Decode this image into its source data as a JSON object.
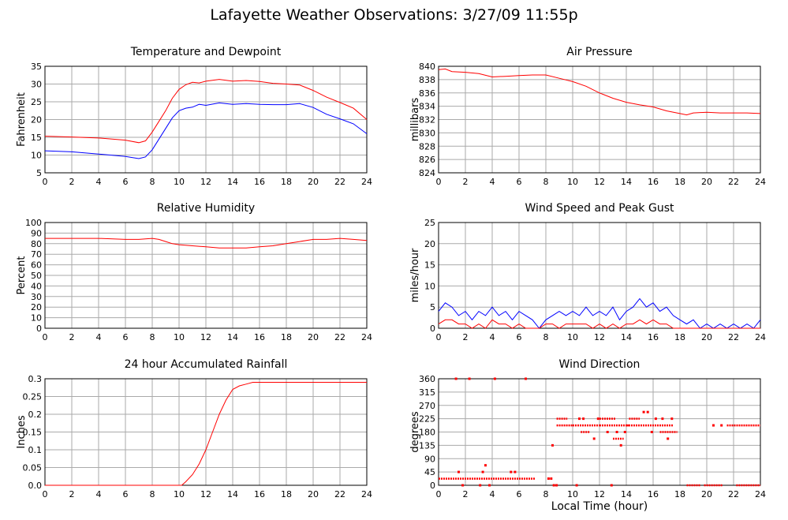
{
  "page": {
    "title": "Lafayette Weather Observations: 3/27/09 11:55p"
  },
  "common_xlabel": "Local Time (hour)",
  "chart_data": [
    {
      "id": "temp",
      "type": "line",
      "title": "Temperature and Dewpoint",
      "xlabel": "",
      "ylabel": "Fahrenheit",
      "xlim": [
        0,
        24
      ],
      "ylim": [
        5,
        35
      ],
      "grid": true,
      "x_ticks": [
        0,
        2,
        4,
        6,
        8,
        10,
        12,
        14,
        16,
        18,
        20,
        22,
        24
      ],
      "y_ticks": [
        5,
        10,
        15,
        20,
        25,
        30,
        35
      ],
      "series": [
        {
          "color": "#ff0000",
          "x": [
            0,
            2,
            4,
            6,
            7,
            7.5,
            8,
            8.5,
            9,
            9.5,
            10,
            10.5,
            11,
            11.5,
            12,
            13,
            14,
            15,
            16,
            17,
            18,
            19,
            20,
            21,
            22,
            23,
            24
          ],
          "y": [
            15.3,
            15.1,
            14.8,
            14.2,
            13.5,
            14,
            16.5,
            19.5,
            22.5,
            26,
            28.5,
            29.8,
            30.5,
            30.3,
            30.8,
            31.3,
            30.8,
            31,
            30.7,
            30.2,
            30,
            29.7,
            28.2,
            26.3,
            24.8,
            23.2,
            20
          ]
        },
        {
          "color": "#0000ff",
          "x": [
            0,
            2,
            4,
            6,
            7,
            7.5,
            8,
            8.5,
            9,
            9.5,
            10,
            10.5,
            11,
            11.5,
            12,
            13,
            14,
            15,
            16,
            17,
            18,
            19,
            20,
            21,
            22,
            23,
            24
          ],
          "y": [
            11.2,
            10.9,
            10.3,
            9.6,
            9,
            9.5,
            11.5,
            14.5,
            17.5,
            20.5,
            22.5,
            23.2,
            23.5,
            24.3,
            24,
            24.7,
            24.3,
            24.5,
            24.3,
            24.2,
            24.2,
            24.5,
            23.4,
            21.5,
            20.2,
            18.8,
            16
          ]
        }
      ]
    },
    {
      "id": "pressure",
      "type": "line",
      "title": "Air Pressure",
      "xlabel": "",
      "ylabel": "millibars",
      "xlim": [
        0,
        24
      ],
      "ylim": [
        824,
        840
      ],
      "grid": true,
      "x_ticks": [
        0,
        2,
        4,
        6,
        8,
        10,
        12,
        14,
        16,
        18,
        20,
        22,
        24
      ],
      "y_ticks": [
        824,
        826,
        828,
        830,
        832,
        834,
        836,
        838,
        840
      ],
      "series": [
        {
          "color": "#ff0000",
          "x": [
            0,
            0.5,
            1,
            2,
            3,
            4,
            5,
            6,
            7,
            8,
            9,
            10,
            11,
            12,
            13,
            14,
            15,
            16,
            17,
            18,
            18.5,
            19,
            20,
            21,
            22,
            23,
            24
          ],
          "y": [
            839.5,
            839.6,
            839.2,
            839.1,
            838.9,
            838.4,
            838.5,
            838.6,
            838.7,
            838.7,
            838.2,
            837.7,
            837,
            836,
            835.2,
            834.6,
            834.2,
            833.9,
            833.3,
            832.9,
            832.7,
            833,
            833.1,
            833,
            833,
            833,
            832.9
          ]
        }
      ]
    },
    {
      "id": "humidity",
      "type": "line",
      "title": "Relative Humidity",
      "xlabel": "",
      "ylabel": "Percent",
      "xlim": [
        0,
        24
      ],
      "ylim": [
        0,
        100
      ],
      "grid": true,
      "x_ticks": [
        0,
        2,
        4,
        6,
        8,
        10,
        12,
        14,
        16,
        18,
        20,
        22,
        24
      ],
      "y_ticks": [
        0,
        10,
        20,
        30,
        40,
        50,
        60,
        70,
        80,
        90,
        100
      ],
      "series": [
        {
          "color": "#ff0000",
          "x": [
            0,
            2,
            4,
            6,
            7,
            8,
            8.5,
            9,
            9.5,
            10,
            11,
            12,
            13,
            14,
            15,
            16,
            17,
            18,
            19,
            20,
            21,
            22,
            23,
            24
          ],
          "y": [
            85,
            85,
            85,
            84,
            84,
            85,
            84,
            82,
            80,
            79,
            78,
            77,
            76,
            76,
            76,
            77,
            78,
            80,
            82,
            84,
            84,
            85,
            84,
            83
          ]
        }
      ]
    },
    {
      "id": "wind",
      "type": "line",
      "title": "Wind Speed and Peak Gust",
      "xlabel": "",
      "ylabel": "miles/hour",
      "xlim": [
        0,
        24
      ],
      "ylim": [
        0,
        25
      ],
      "grid": true,
      "x_ticks": [
        0,
        2,
        4,
        6,
        8,
        10,
        12,
        14,
        16,
        18,
        20,
        22,
        24
      ],
      "y_ticks": [
        0,
        5,
        10,
        15,
        20,
        25
      ],
      "series": [
        {
          "color": "#0000ff",
          "x": [
            0,
            0.5,
            1,
            1.5,
            2,
            2.5,
            3,
            3.5,
            4,
            4.5,
            5,
            5.5,
            6,
            6.5,
            7,
            7.5,
            8,
            8.5,
            9,
            9.5,
            10,
            10.5,
            11,
            11.5,
            12,
            12.5,
            13,
            13.5,
            14,
            14.5,
            15,
            15.5,
            16,
            16.5,
            17,
            17.5,
            18,
            18.5,
            19,
            19.5,
            20,
            20.5,
            21,
            21.5,
            22,
            22.5,
            23,
            23.5,
            24
          ],
          "y": [
            4,
            6,
            5,
            3,
            4,
            2,
            4,
            3,
            5,
            3,
            4,
            2,
            4,
            3,
            2,
            0,
            2,
            3,
            4,
            3,
            4,
            3,
            5,
            3,
            4,
            3,
            5,
            2,
            4,
            5,
            7,
            5,
            6,
            4,
            5,
            3,
            2,
            1,
            2,
            0,
            1,
            0,
            1,
            0,
            1,
            0,
            1,
            0,
            2
          ]
        },
        {
          "color": "#ff0000",
          "x": [
            0,
            0.5,
            1,
            1.5,
            2,
            2.5,
            3,
            3.5,
            4,
            4.5,
            5,
            5.5,
            6,
            6.5,
            7,
            7.5,
            8,
            8.5,
            9,
            9.5,
            10,
            10.5,
            11,
            11.5,
            12,
            12.5,
            13,
            13.5,
            14,
            14.5,
            15,
            15.5,
            16,
            16.5,
            17,
            17.5,
            18,
            19,
            20,
            21,
            22,
            23,
            24
          ],
          "y": [
            1,
            2,
            2,
            1,
            1,
            0,
            1,
            0,
            2,
            1,
            1,
            0,
            1,
            0,
            0,
            0,
            1,
            1,
            0,
            1,
            1,
            1,
            1,
            0,
            1,
            0,
            1,
            0,
            1,
            1,
            2,
            1,
            2,
            1,
            1,
            0,
            0,
            0,
            0,
            0,
            0,
            0,
            0
          ]
        }
      ]
    },
    {
      "id": "rain",
      "type": "line",
      "title": "24 hour Accumulated Rainfall",
      "xlabel": "",
      "ylabel": "Inches",
      "xlim": [
        0,
        24
      ],
      "ylim": [
        0,
        0.3
      ],
      "grid": true,
      "x_ticks": [
        0,
        2,
        4,
        6,
        8,
        10,
        12,
        14,
        16,
        18,
        20,
        22,
        24
      ],
      "y_ticks": [
        0,
        0.05,
        0.1,
        0.15,
        0.2,
        0.25,
        0.3
      ],
      "y_tick_labels": [
        "0.0",
        "0.05",
        "0.1",
        "0.15",
        "0.2",
        "0.25",
        "0.3"
      ],
      "series": [
        {
          "color": "#ff0000",
          "x": [
            0,
            10.2,
            10.5,
            11,
            11.5,
            12,
            12.5,
            13,
            13.5,
            14,
            14.5,
            15,
            15.5,
            16,
            24
          ],
          "y": [
            0,
            0,
            0.01,
            0.03,
            0.06,
            0.1,
            0.15,
            0.2,
            0.24,
            0.27,
            0.28,
            0.285,
            0.29,
            0.29,
            0.29
          ]
        }
      ]
    },
    {
      "id": "direction",
      "type": "scatter",
      "title": "Wind Direction",
      "xlabel": "Local Time (hour)",
      "ylabel": "degrees",
      "xlim": [
        0,
        24
      ],
      "ylim": [
        0,
        360
      ],
      "grid": true,
      "x_ticks": [
        0,
        2,
        4,
        6,
        8,
        10,
        12,
        14,
        16,
        18,
        20,
        22,
        24
      ],
      "y_ticks": [
        0,
        45,
        90,
        135,
        180,
        225,
        270,
        315,
        360
      ],
      "point_color": "#ff0000",
      "segments": [
        {
          "x0": 0,
          "x1": 7.2,
          "y": 22.5
        },
        {
          "x0": 8.8,
          "x1": 9.6,
          "y": 225
        },
        {
          "x0": 8.8,
          "x1": 10,
          "y": 202.5
        },
        {
          "x0": 10,
          "x1": 12,
          "y": 202.5
        },
        {
          "x0": 10.6,
          "x1": 11.3,
          "y": 180
        },
        {
          "x0": 12,
          "x1": 13.2,
          "y": 225
        },
        {
          "x0": 12,
          "x1": 14.2,
          "y": 202.5
        },
        {
          "x0": 13,
          "x1": 13.8,
          "y": 157.5
        },
        {
          "x0": 14,
          "x1": 17.5,
          "y": 202.5
        },
        {
          "x0": 14.2,
          "x1": 15,
          "y": 225
        },
        {
          "x0": 16.5,
          "x1": 17.8,
          "y": 180
        },
        {
          "x0": 18.5,
          "x1": 19.5,
          "y": 0
        },
        {
          "x0": 19.8,
          "x1": 21.2,
          "y": 0
        },
        {
          "x0": 21.5,
          "x1": 24,
          "y": 202.5
        },
        {
          "x0": 22.2,
          "x1": 24,
          "y": 0
        }
      ],
      "points": [
        {
          "x": 1.3,
          "y": 360
        },
        {
          "x": 2.3,
          "y": 360
        },
        {
          "x": 4.2,
          "y": 360
        },
        {
          "x": 6.5,
          "y": 360
        },
        {
          "x": 1.5,
          "y": 45
        },
        {
          "x": 3.5,
          "y": 67.5
        },
        {
          "x": 3.3,
          "y": 45
        },
        {
          "x": 5.4,
          "y": 45
        },
        {
          "x": 5.7,
          "y": 45
        },
        {
          "x": 1.8,
          "y": 0
        },
        {
          "x": 3.1,
          "y": 0
        },
        {
          "x": 3.8,
          "y": 0
        },
        {
          "x": 8.2,
          "y": 22.5
        },
        {
          "x": 8.4,
          "y": 22.5
        },
        {
          "x": 8.6,
          "y": 0
        },
        {
          "x": 8.8,
          "y": 0
        },
        {
          "x": 10.3,
          "y": 0
        },
        {
          "x": 12.9,
          "y": 0
        },
        {
          "x": 8.5,
          "y": 135
        },
        {
          "x": 10.5,
          "y": 225
        },
        {
          "x": 10.8,
          "y": 225
        },
        {
          "x": 11.6,
          "y": 157.5
        },
        {
          "x": 11.9,
          "y": 225
        },
        {
          "x": 12.6,
          "y": 180
        },
        {
          "x": 13.3,
          "y": 180
        },
        {
          "x": 13.6,
          "y": 135
        },
        {
          "x": 13.9,
          "y": 180
        },
        {
          "x": 15.3,
          "y": 247.5
        },
        {
          "x": 15.6,
          "y": 247.5
        },
        {
          "x": 15.9,
          "y": 180
        },
        {
          "x": 16.2,
          "y": 225
        },
        {
          "x": 16.7,
          "y": 225
        },
        {
          "x": 17.1,
          "y": 157.5
        },
        {
          "x": 17.4,
          "y": 225
        },
        {
          "x": 20.5,
          "y": 202.5
        },
        {
          "x": 21.1,
          "y": 202.5
        }
      ]
    }
  ]
}
